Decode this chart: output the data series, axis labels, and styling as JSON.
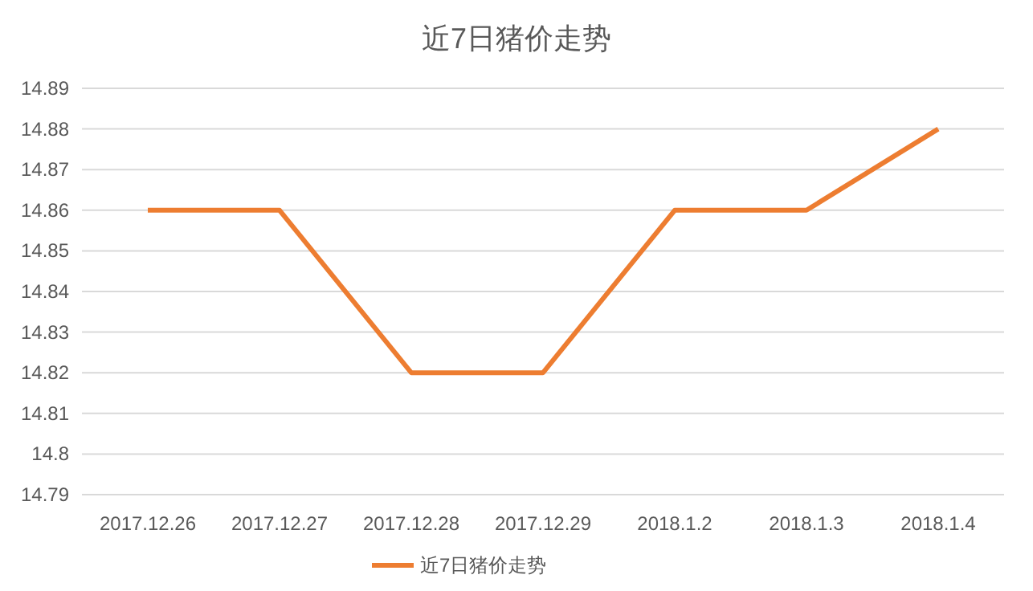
{
  "chart_data": {
    "type": "line",
    "title": "近7日猪价走势",
    "categories": [
      "2017.12.26",
      "2017.12.27",
      "2017.12.28",
      "2017.12.29",
      "2018.1.2",
      "2018.1.3",
      "2018.1.4"
    ],
    "series": [
      {
        "name": "近7日猪价走势",
        "color": "#ed7d31",
        "values": [
          14.86,
          14.86,
          14.82,
          14.82,
          14.86,
          14.86,
          14.88
        ]
      }
    ],
    "ylim": [
      14.79,
      14.89
    ],
    "yticks": [
      14.79,
      14.8,
      14.81,
      14.82,
      14.83,
      14.84,
      14.85,
      14.86,
      14.87,
      14.88,
      14.89
    ],
    "grid": "y",
    "legend": "bottom",
    "marker": "none",
    "line_style": "solid"
  }
}
